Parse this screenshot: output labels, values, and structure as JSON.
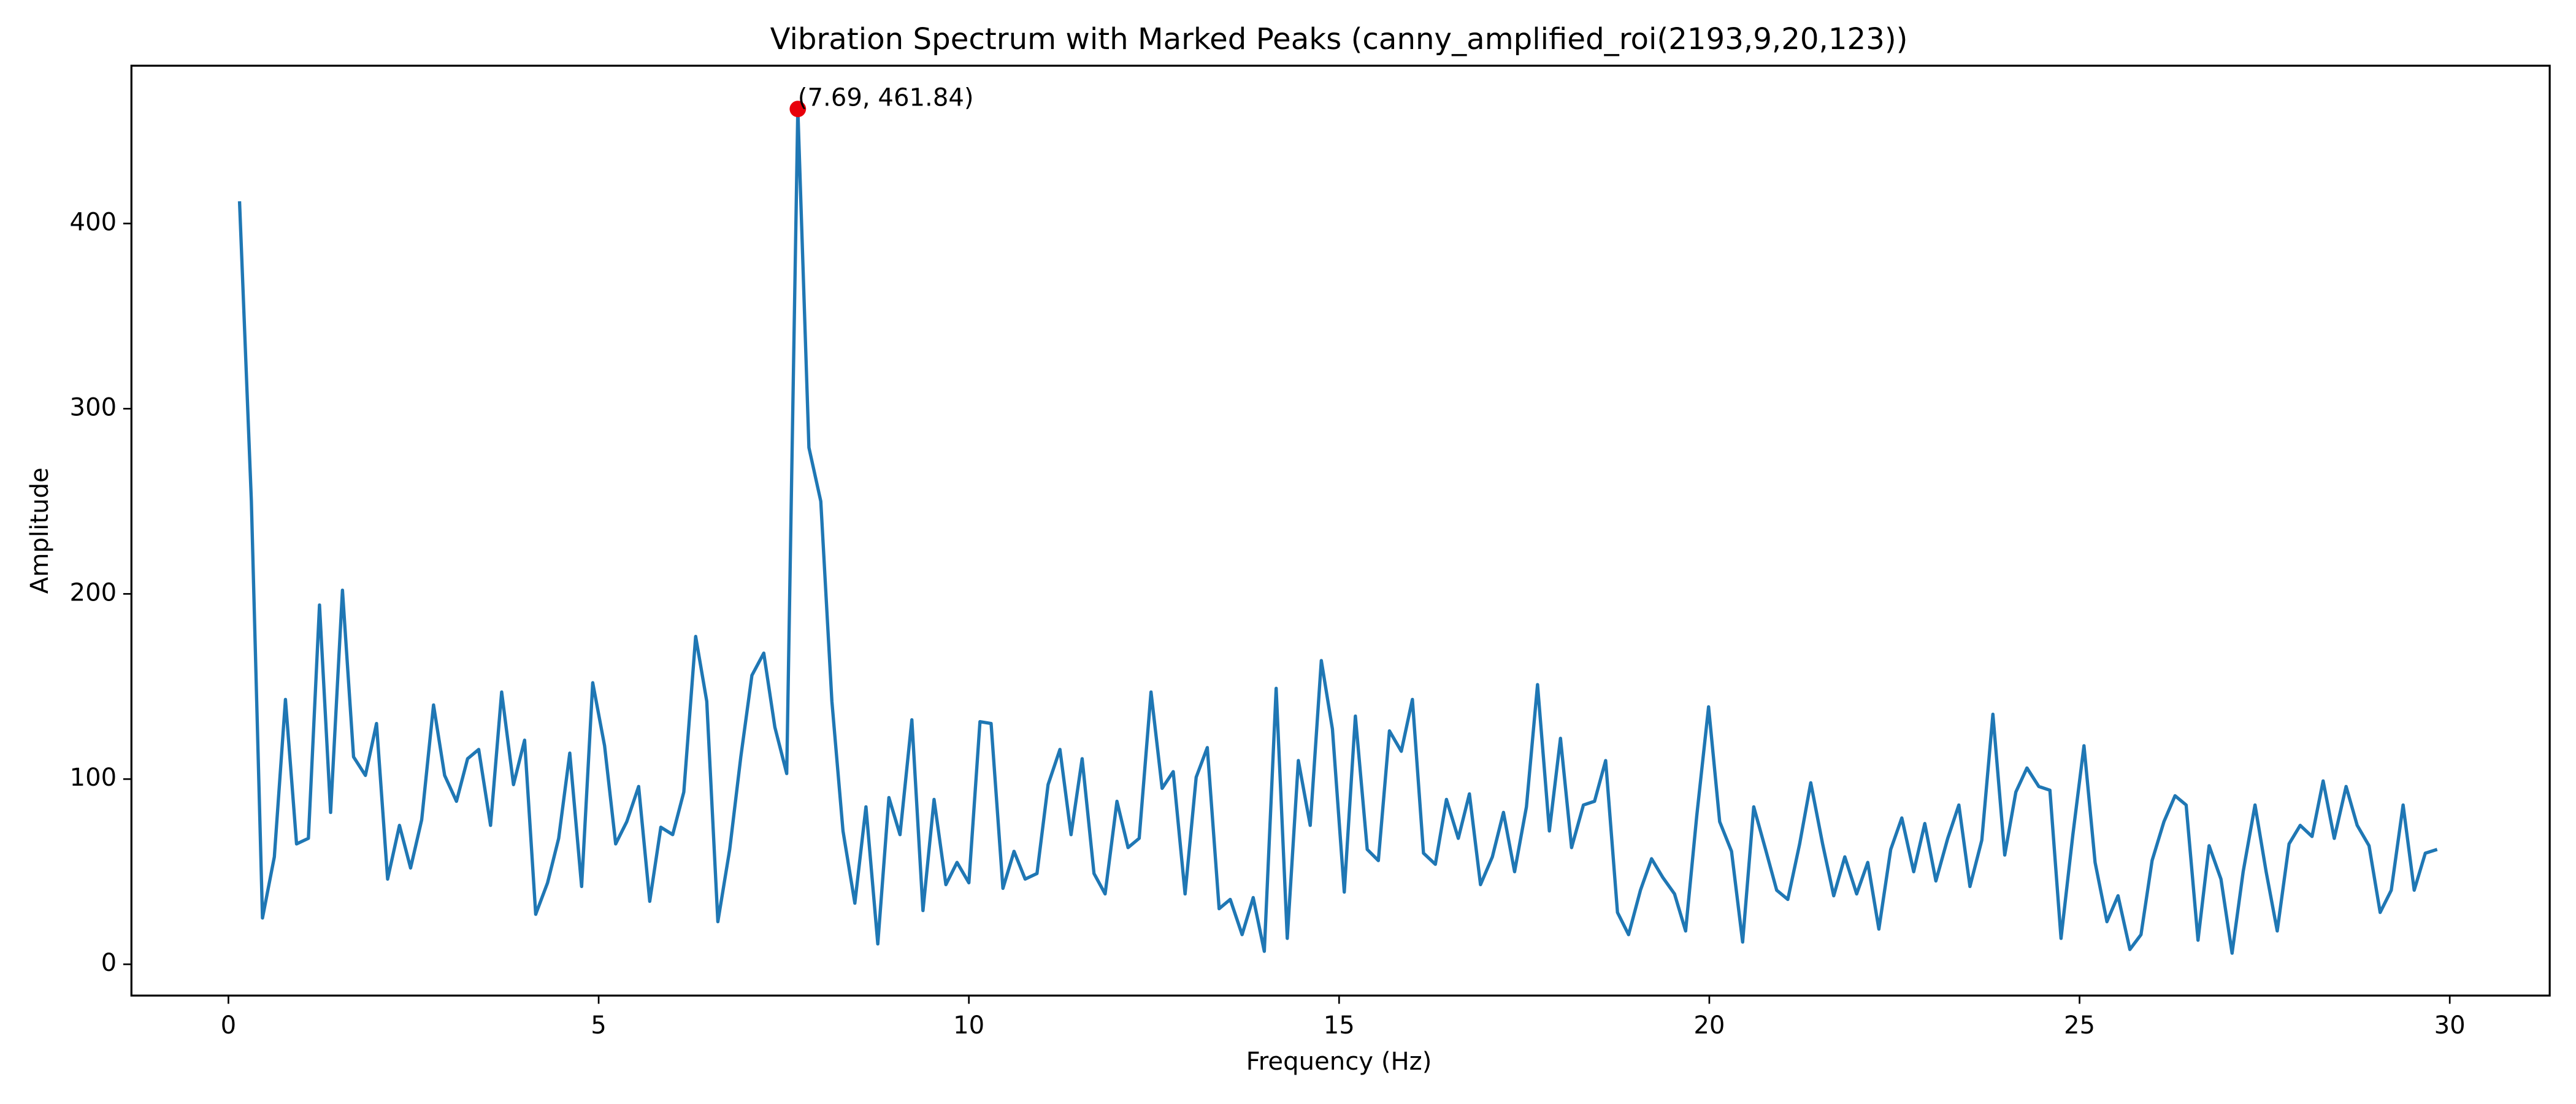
{
  "chart_data": {
    "type": "line",
    "title": "Vibration Spectrum with Marked Peaks (canny_amplified_roi(2193,9,20,123))",
    "x_label": "Frequency (Hz)",
    "y_label": "Amplitude",
    "xlim": [
      -1.31,
      31.35
    ],
    "ylim": [
      -16.9,
      485.2
    ],
    "xticks": [
      0,
      5,
      10,
      15,
      20,
      25,
      30
    ],
    "yticks": [
      0,
      100,
      200,
      300,
      400
    ],
    "grid": false,
    "x": [
      0.15,
      0.31,
      0.46,
      0.62,
      0.77,
      0.92,
      1.08,
      1.23,
      1.38,
      1.54,
      1.69,
      1.85,
      2.0,
      2.15,
      2.31,
      2.46,
      2.61,
      2.77,
      2.92,
      3.08,
      3.23,
      3.38,
      3.54,
      3.69,
      3.85,
      4.0,
      4.15,
      4.31,
      4.46,
      4.61,
      4.77,
      4.92,
      5.08,
      5.23,
      5.38,
      5.54,
      5.69,
      5.84,
      6.0,
      6.15,
      6.31,
      6.46,
      6.61,
      6.77,
      6.92,
      7.07,
      7.23,
      7.38,
      7.54,
      7.69,
      7.84,
      8.0,
      8.15,
      8.3,
      8.46,
      8.61,
      8.77,
      8.92,
      9.07,
      9.23,
      9.38,
      9.53,
      9.69,
      9.84,
      10.0,
      10.15,
      10.3,
      10.46,
      10.61,
      10.76,
      10.92,
      11.07,
      11.23,
      11.38,
      11.53,
      11.69,
      11.84,
      12.0,
      12.15,
      12.3,
      12.46,
      12.61,
      12.76,
      12.92,
      13.07,
      13.22,
      13.38,
      13.53,
      13.69,
      13.84,
      13.99,
      14.15,
      14.3,
      14.45,
      14.61,
      14.76,
      14.91,
      15.07,
      15.22,
      15.38,
      15.53,
      15.68,
      15.84,
      15.99,
      16.14,
      16.3,
      16.45,
      16.61,
      16.76,
      16.91,
      17.07,
      17.22,
      17.37,
      17.53,
      17.68,
      17.84,
      17.99,
      18.14,
      18.3,
      18.45,
      18.6,
      18.76,
      18.91,
      19.07,
      19.22,
      19.37,
      19.53,
      19.68,
      19.83,
      19.99,
      20.14,
      20.3,
      20.45,
      20.6,
      20.76,
      20.91,
      21.06,
      21.22,
      21.37,
      21.53,
      21.68,
      21.83,
      21.99,
      22.14,
      22.29,
      22.45,
      22.6,
      22.76,
      22.91,
      23.06,
      23.22,
      23.37,
      23.52,
      23.68,
      23.83,
      23.99,
      24.14,
      24.29,
      24.45,
      24.6,
      24.75,
      24.91,
      25.06,
      25.21,
      25.37,
      25.52,
      25.68,
      25.83,
      25.98,
      26.14,
      26.29,
      26.44,
      26.6,
      26.75,
      26.91,
      27.06,
      27.21,
      27.37,
      27.52,
      27.67,
      27.83,
      27.98,
      28.14,
      28.29,
      28.44,
      28.6,
      28.75,
      28.91,
      29.06,
      29.21,
      29.37,
      29.52,
      29.67,
      29.83
    ],
    "series": [
      {
        "color": "#1f77b4",
        "values": [
          412,
          250,
          25,
          58,
          143,
          65,
          68,
          194,
          82,
          202,
          112,
          102,
          130,
          46,
          75,
          52,
          78,
          140,
          102,
          88,
          111,
          116,
          75,
          147,
          97,
          121,
          27,
          44,
          68,
          114,
          42,
          152,
          118,
          65,
          77,
          96,
          34,
          74,
          70,
          93,
          177,
          142,
          23,
          62,
          112,
          156,
          168,
          128,
          103,
          461.84,
          279,
          250,
          142,
          72,
          33,
          85,
          11,
          90,
          70,
          132,
          29,
          89,
          43,
          55,
          44,
          131,
          130,
          41,
          61,
          46,
          49,
          97,
          116,
          70,
          111,
          49,
          38,
          88,
          63,
          68,
          147,
          95,
          104,
          38,
          101,
          117,
          30,
          35,
          16,
          36,
          7,
          149,
          14,
          110,
          75,
          164,
          127,
          39,
          134,
          62,
          56,
          126,
          115,
          143,
          60,
          54,
          89,
          68,
          92,
          43,
          58,
          82,
          50,
          85,
          151,
          72,
          122,
          63,
          86,
          88,
          110,
          28,
          16,
          40,
          57,
          47,
          38,
          18,
          80,
          139,
          77,
          61,
          12,
          85,
          62,
          40,
          35,
          65,
          98,
          65,
          37,
          58,
          38,
          55,
          19,
          62,
          79,
          50,
          76,
          45,
          68,
          86,
          42,
          67,
          135,
          59,
          93,
          106,
          96,
          94,
          14,
          70,
          118,
          55,
          23,
          37,
          8,
          16,
          56,
          77,
          91,
          86,
          13,
          64,
          46,
          6,
          50,
          86,
          50,
          18,
          65,
          75,
          69,
          99,
          68,
          96,
          75,
          64,
          28,
          40,
          86,
          40,
          60,
          62
        ]
      }
    ],
    "annotation": {
      "label": "(7.69, 461.84)",
      "x": 7.69,
      "y": 461.84,
      "color": "#e8000b"
    }
  }
}
